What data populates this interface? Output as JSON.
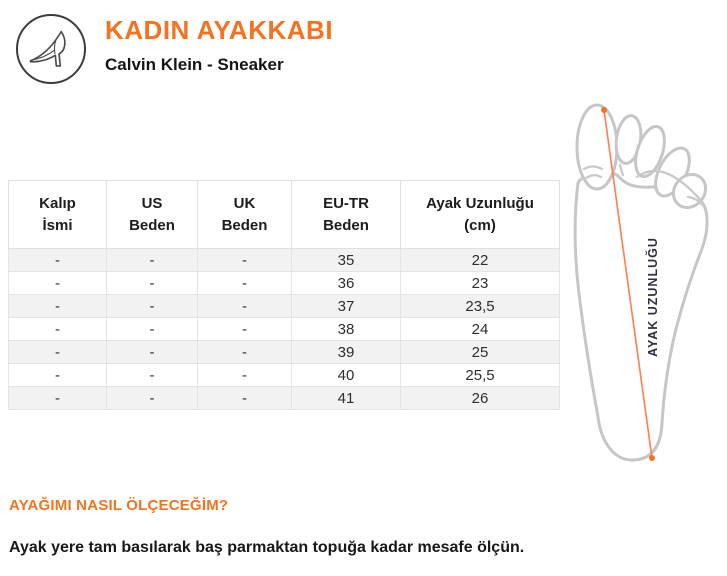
{
  "colors": {
    "accent_orange": "#F4731F",
    "measure_line_orange": "#FF7E4F",
    "foot_outline_gray": "#C6C6C6",
    "table_border": "#E4E4E4",
    "table_alt_row_bg": "#F2F2F2",
    "foot_label_dark": "#2E3040"
  },
  "header": {
    "icon": "high-heel-shoe-icon",
    "title": "KADIN AYAKKABI",
    "subtitle": "Calvin Klein - Sneaker"
  },
  "size_table": {
    "columns": [
      {
        "line1": "Kalıp",
        "line2": "İsmi"
      },
      {
        "line1": "US",
        "line2": "Beden"
      },
      {
        "line1": "UK",
        "line2": "Beden"
      },
      {
        "line1": "EU-TR",
        "line2": "Beden"
      },
      {
        "line1": "Ayak Uzunluğu",
        "line2": "(cm)"
      }
    ],
    "rows": [
      [
        "-",
        "-",
        "-",
        "35",
        "22"
      ],
      [
        "-",
        "-",
        "-",
        "36",
        "23"
      ],
      [
        "-",
        "-",
        "-",
        "37",
        "23,5"
      ],
      [
        "-",
        "-",
        "-",
        "38",
        "24"
      ],
      [
        "-",
        "-",
        "-",
        "39",
        "25"
      ],
      [
        "-",
        "-",
        "-",
        "40",
        "25,5"
      ],
      [
        "-",
        "-",
        "-",
        "41",
        "26"
      ]
    ]
  },
  "foot_diagram": {
    "label": "AYAK UZUNLUĞU"
  },
  "measurement_guide": {
    "heading": "AYAĞIMI NASIL ÖLÇECEĞİM?",
    "instruction": "Ayak yere tam basılarak baş parmaktan topuğa kadar mesafe ölçün."
  }
}
